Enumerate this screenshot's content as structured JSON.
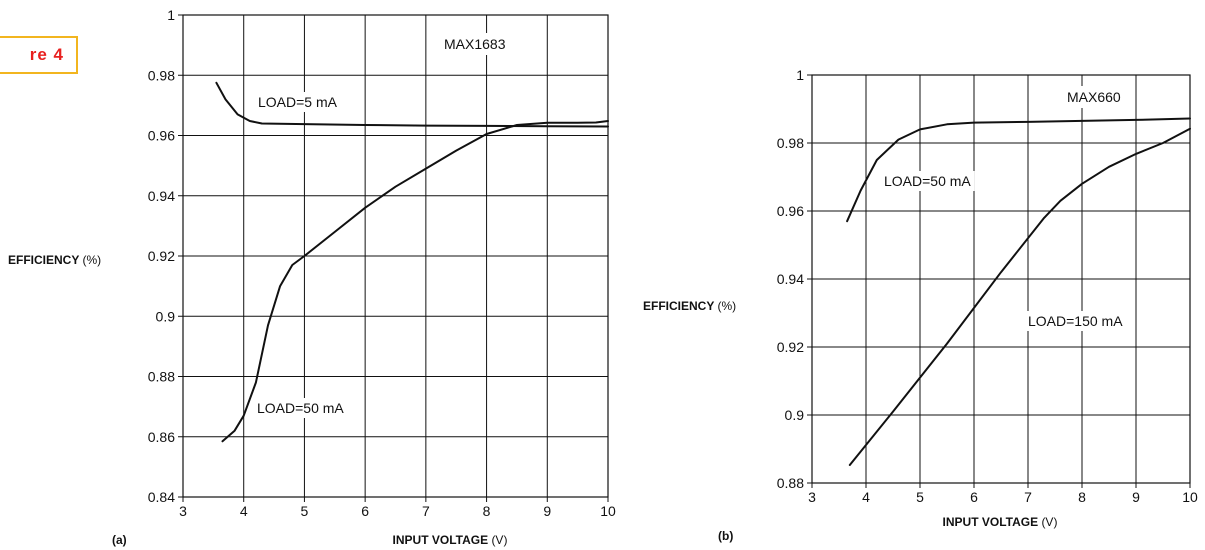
{
  "figure_tag": "re 4",
  "chart_data": [
    {
      "type": "line",
      "panel": "(a)",
      "annotation": "MAX1683",
      "xlabel": "INPUT VOLTAGE",
      "xunit": "(V)",
      "ylabel": "EFFICIENCY",
      "yunit": "(%)",
      "xlim": [
        3,
        10
      ],
      "ylim": [
        0.84,
        1
      ],
      "xticks": [
        "3",
        "4",
        "5",
        "6",
        "7",
        "8",
        "9",
        "10"
      ],
      "yticks": [
        "0.84",
        "0.86",
        "0.88",
        "0.9",
        "0.92",
        "0.94",
        "0.96",
        "0.98",
        "1"
      ],
      "grid": true,
      "series": [
        {
          "name": "LOAD=5 mA",
          "points": [
            [
              3.55,
              0.9775
            ],
            [
              3.7,
              0.972
            ],
            [
              3.9,
              0.967
            ],
            [
              4.1,
              0.9648
            ],
            [
              4.3,
              0.964
            ],
            [
              5,
              0.9638
            ],
            [
              6,
              0.9635
            ],
            [
              7,
              0.9633
            ],
            [
              8,
              0.9632
            ],
            [
              9,
              0.9631
            ],
            [
              10,
              0.963
            ]
          ]
        },
        {
          "name": "LOAD=50 mA",
          "points": [
            [
              3.65,
              0.8585
            ],
            [
              3.85,
              0.862
            ],
            [
              4,
              0.867
            ],
            [
              4.2,
              0.878
            ],
            [
              4.4,
              0.897
            ],
            [
              4.6,
              0.91
            ],
            [
              4.8,
              0.917
            ],
            [
              5,
              0.92
            ],
            [
              5.5,
              0.928
            ],
            [
              6,
              0.936
            ],
            [
              6.5,
              0.943
            ],
            [
              7,
              0.949
            ],
            [
              7.5,
              0.955
            ],
            [
              8,
              0.9605
            ],
            [
              8.5,
              0.9635
            ],
            [
              9,
              0.9642
            ],
            [
              9.5,
              0.9642
            ],
            [
              9.8,
              0.9643
            ],
            [
              10,
              0.9648
            ]
          ]
        }
      ]
    },
    {
      "type": "line",
      "panel": "(b)",
      "annotation": "MAX660",
      "xlabel": "INPUT VOLTAGE",
      "xunit": "(V)",
      "ylabel": "EFFICIENCY",
      "yunit": "(%)",
      "xlim": [
        3,
        10
      ],
      "ylim": [
        0.88,
        1
      ],
      "xticks": [
        "3",
        "4",
        "5",
        "6",
        "7",
        "8",
        "9",
        "10"
      ],
      "yticks": [
        "0.88",
        "0.9",
        "0.92",
        "0.94",
        "0.96",
        "0.98",
        "1"
      ],
      "grid": true,
      "series": [
        {
          "name": "LOAD=50 mA",
          "points": [
            [
              3.65,
              0.957
            ],
            [
              3.9,
              0.966
            ],
            [
              4.2,
              0.975
            ],
            [
              4.6,
              0.981
            ],
            [
              5,
              0.984
            ],
            [
              5.5,
              0.9855
            ],
            [
              6,
              0.986
            ],
            [
              7,
              0.9862
            ],
            [
              8,
              0.9865
            ],
            [
              9,
              0.9868
            ],
            [
              10,
              0.9872
            ]
          ]
        },
        {
          "name": "LOAD=150 mA",
          "points": [
            [
              3.7,
              0.8853
            ],
            [
              4.5,
              0.901
            ],
            [
              5.5,
              0.921
            ],
            [
              6.5,
              0.942
            ],
            [
              7.3,
              0.958
            ],
            [
              7.6,
              0.963
            ],
            [
              8,
              0.968
            ],
            [
              8.5,
              0.973
            ],
            [
              9,
              0.9768
            ],
            [
              9.5,
              0.98
            ],
            [
              10,
              0.9842
            ]
          ]
        }
      ]
    }
  ]
}
